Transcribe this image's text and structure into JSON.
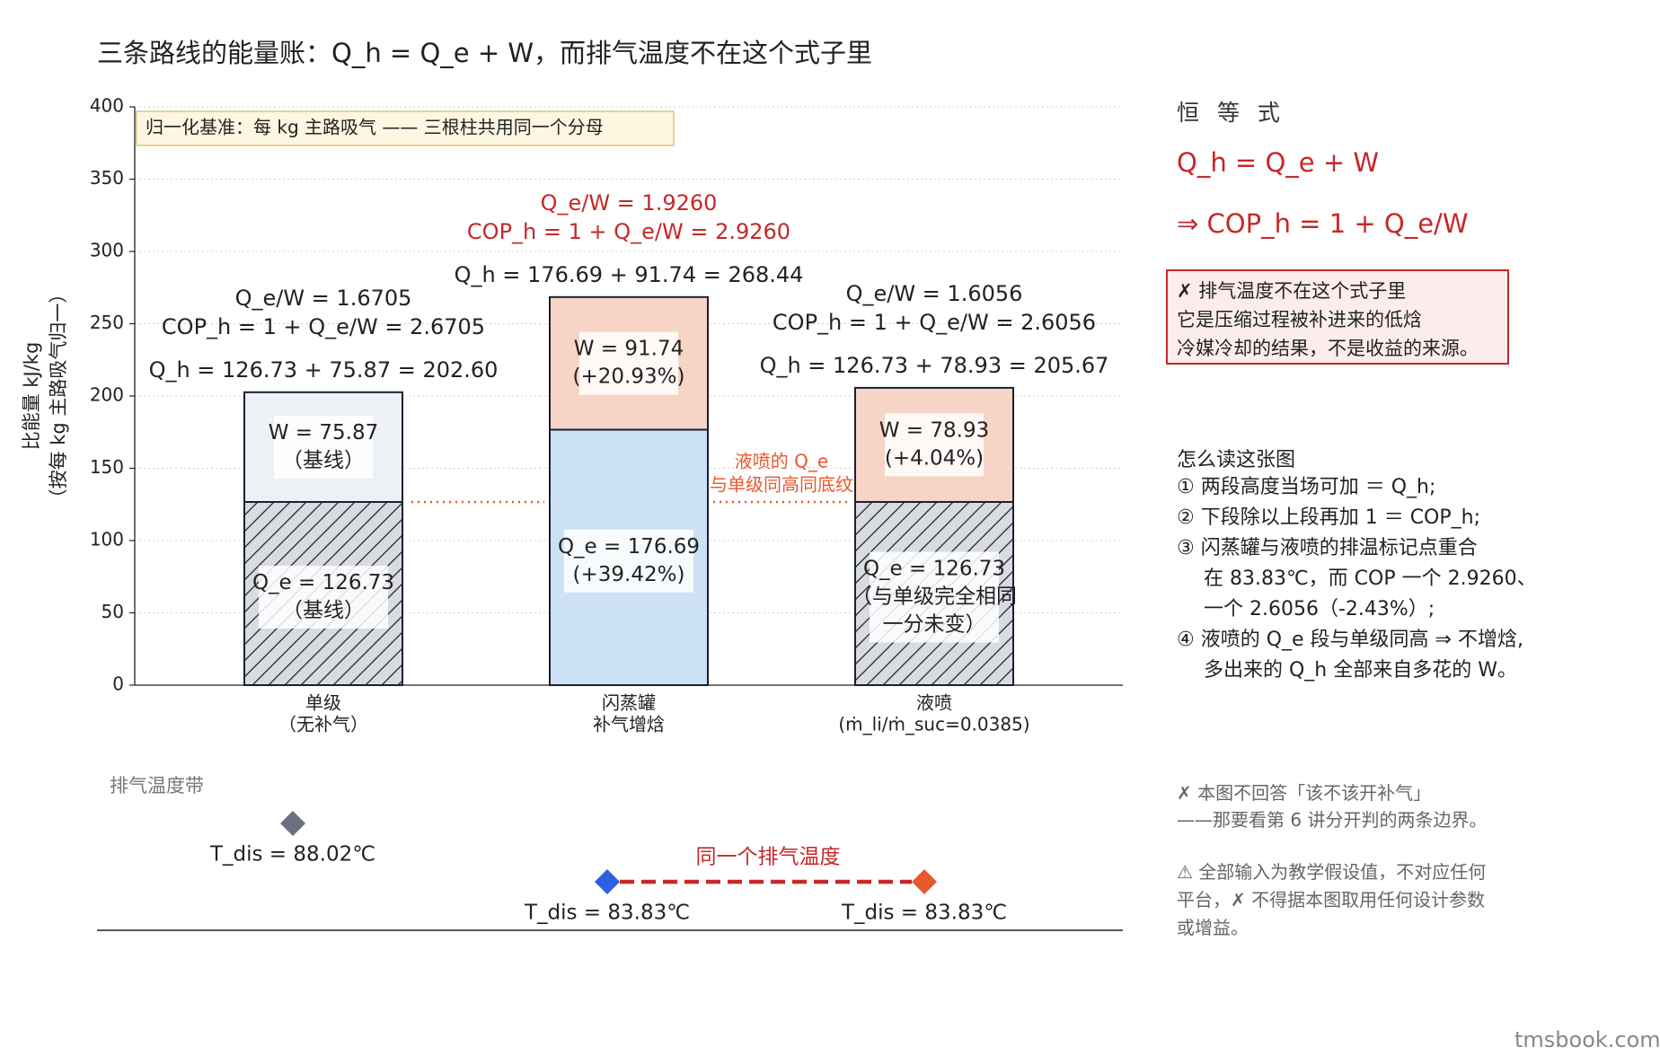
{
  "title": "三条路线的能量账：Q_h = Q_e + W，而排气温度不在这个式子里",
  "chart_data": {
    "type": "bar",
    "stacked": true,
    "ylabel_line1": "比能量  kJ/kg",
    "ylabel_line2": "（按每 kg 主路吸气归一）",
    "ylim": [
      0,
      400
    ],
    "yticks": [
      0,
      50,
      100,
      150,
      200,
      250,
      300,
      350,
      400
    ],
    "grid": "horizontal dotted",
    "normalization_note": "归一化基准：每 kg 主路吸气 —— 三根柱共用同一个分母",
    "categories": [
      {
        "line1": "单级",
        "line2": "（无补气）"
      },
      {
        "line1": "闪蒸罐",
        "line2": "补气增焓"
      },
      {
        "line1": "液喷",
        "line2": "(ṁ_li/ṁ_suc=0.0385)"
      }
    ],
    "series": [
      {
        "key": "Q_e",
        "values": [
          126.73,
          176.69,
          126.73
        ],
        "colors": [
          "#d8dbe2",
          "#cde1f5",
          "#d8dbe2"
        ],
        "hatched": [
          true,
          false,
          true
        ],
        "labels": [
          [
            "Q_e = 126.73",
            "（基线）"
          ],
          [
            "Q_e = 176.69",
            "(+39.42%)"
          ],
          [
            "Q_e = 126.73",
            "（与单级完全相同",
            "一分未变）"
          ]
        ]
      },
      {
        "key": "W",
        "values": [
          75.87,
          91.74,
          78.93
        ],
        "colors": [
          "#edf0f5",
          "#f6d4c6",
          "#f6d4c6"
        ],
        "hatched": [
          false,
          false,
          false
        ],
        "labels": [
          [
            "W = 75.87",
            "（基线）"
          ],
          [
            "W = 91.74",
            "(+20.93%)"
          ],
          [
            "W = 78.93",
            "(+4.04%)"
          ]
        ]
      }
    ],
    "totals": [
      202.6,
      268.44,
      205.67
    ],
    "annotations": [
      {
        "qh": "Q_h = 126.73 + 75.87 = 202.60",
        "cop": "COP_h = 1 + Q_e/W = 2.6705",
        "ratio": "Q_e/W = 1.6705",
        "color": "#222222"
      },
      {
        "qh": "Q_h = 176.69 + 91.74 = 268.44",
        "cop": "COP_h = 1 + Q_e/W = 2.9260",
        "ratio": "Q_e/W = 1.9260",
        "color": "#c62828"
      },
      {
        "qh": "Q_h = 126.73 + 78.93 = 205.67",
        "cop": "COP_h = 1 + Q_e/W = 2.6056",
        "ratio": "Q_e/W = 1.6056",
        "color": "#222222"
      }
    ],
    "baseline_note": {
      "line1": "液喷的 Q_e",
      "line2": "与单级同高同底纹",
      "color": "#e8582e"
    },
    "discharge": {
      "label": "排气温度带",
      "link_label": "同一个排气温度",
      "points": [
        {
          "label": "T_dis = 88.02℃",
          "color": "#6b7080"
        },
        {
          "label": "T_dis = 83.83℃",
          "color": "#2f5fe0"
        },
        {
          "label": "T_dis = 83.83℃",
          "color": "#e8582e"
        }
      ]
    }
  },
  "identity": {
    "heading": "恒 等 式",
    "eq1": "Q_h = Q_e + W",
    "eq2": "⇒ COP_h = 1 + Q_e/W"
  },
  "warning": [
    "✗ 排气温度不在这个式子里",
    "它是压缩过程被补进来的低焓",
    "冷媒冷却的结果，不是收益的来源。"
  ],
  "howto": {
    "title": "怎么读这张图",
    "lines": [
      "① 两段高度当场可加 ＝ Q_h;",
      "② 下段除以上段再加 1 ＝ COP_h;",
      "③ 闪蒸罐与液喷的排温标记点重合",
      "在 83.83℃，而 COP 一个 2.9260、",
      "一个 2.6056（-2.43%）;",
      "④ 液喷的 Q_e 段与单级同高 ⇒ 不增焓,",
      "多出来的 Q_h 全部来自多花的 W。"
    ]
  },
  "note1": [
    "✗ 本图不回答「该不该开补气」",
    "——那要看第 6 讲分开判的两条边界。"
  ],
  "note2": [
    "⚠ 全部输入为教学假设值，不对应任何",
    "平台，✗ 不得据本图取用任何设计参数",
    "或增益。"
  ],
  "watermark": "tmsbook.com"
}
